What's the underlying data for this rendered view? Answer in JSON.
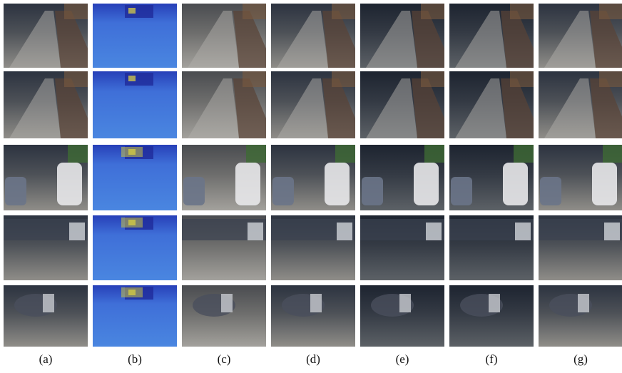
{
  "captions": [
    "(a)",
    "(b)",
    "(c)",
    "(d)",
    "(e)",
    "(f)",
    "(g)"
  ]
}
